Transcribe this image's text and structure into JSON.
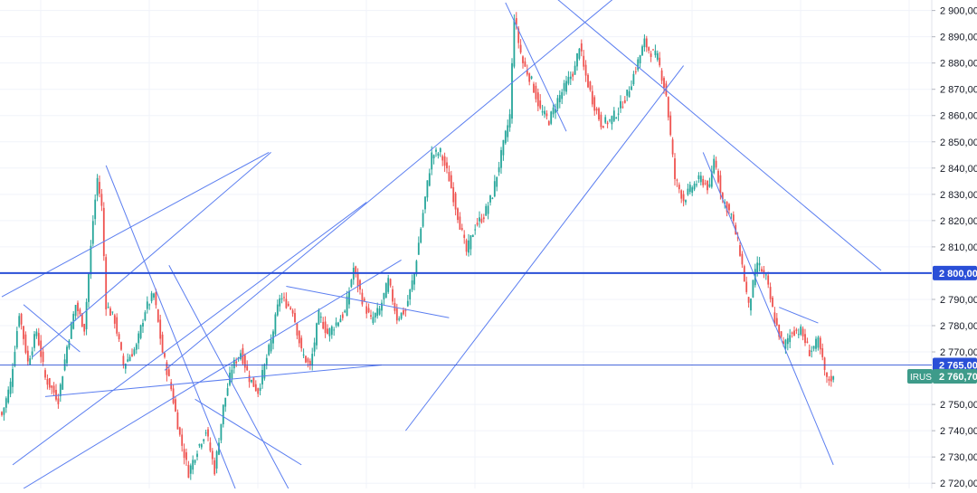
{
  "chart_data": {
    "type": "candlestick",
    "ylim": [
      2718,
      2904
    ],
    "y_ticks": [
      {
        "value": 2900,
        "label": "2 900,00"
      },
      {
        "value": 2890,
        "label": "2 890,00"
      },
      {
        "value": 2880,
        "label": "2 880,00"
      },
      {
        "value": 2870,
        "label": "2 870,00"
      },
      {
        "value": 2860,
        "label": "2 860,00"
      },
      {
        "value": 2850,
        "label": "2 850,00"
      },
      {
        "value": 2840,
        "label": "2 840,00"
      },
      {
        "value": 2830,
        "label": "2 830,00"
      },
      {
        "value": 2820,
        "label": "2 820,00"
      },
      {
        "value": 2810,
        "label": "2 810,00"
      },
      {
        "value": 2790,
        "label": "2 790,00"
      },
      {
        "value": 2780,
        "label": "2 780,00"
      },
      {
        "value": 2770,
        "label": "2 770,00"
      },
      {
        "value": 2750,
        "label": "2 750,00"
      },
      {
        "value": 2740,
        "label": "2 740,00"
      },
      {
        "value": 2730,
        "label": "2 730,00"
      },
      {
        "value": 2720,
        "label": "2 720,00"
      }
    ],
    "grid": true,
    "x_tick_count": 9,
    "levels": [
      {
        "value": 2800,
        "label": "2 800,00",
        "thick": true
      },
      {
        "value": 2765,
        "label": "2 765,00",
        "thick": false
      }
    ],
    "last_price": {
      "symbol": "IRUS",
      "value": 2760.7,
      "label": "2 760,70"
    },
    "colors": {
      "up": "#26a69a",
      "down": "#ef5350",
      "trendline": "#5b7ef0",
      "level": "#2a4fd7",
      "grid": "#f0f3fa",
      "axis_text": "#131722",
      "price_tag": "#3e9b8a"
    },
    "anchors": [
      [
        0,
        2746
      ],
      [
        4,
        2758
      ],
      [
        8,
        2785
      ],
      [
        12,
        2766
      ],
      [
        16,
        2778
      ],
      [
        20,
        2760
      ],
      [
        26,
        2752
      ],
      [
        30,
        2772
      ],
      [
        34,
        2788
      ],
      [
        38,
        2779
      ],
      [
        42,
        2820
      ],
      [
        44,
        2836
      ],
      [
        46,
        2825
      ],
      [
        48,
        2788
      ],
      [
        52,
        2782
      ],
      [
        56,
        2765
      ],
      [
        62,
        2772
      ],
      [
        66,
        2786
      ],
      [
        70,
        2792
      ],
      [
        74,
        2770
      ],
      [
        78,
        2756
      ],
      [
        82,
        2738
      ],
      [
        86,
        2724
      ],
      [
        90,
        2733
      ],
      [
        94,
        2740
      ],
      [
        98,
        2725
      ],
      [
        102,
        2749
      ],
      [
        106,
        2764
      ],
      [
        110,
        2770
      ],
      [
        114,
        2760
      ],
      [
        118,
        2755
      ],
      [
        124,
        2774
      ],
      [
        128,
        2791
      ],
      [
        134,
        2786
      ],
      [
        138,
        2770
      ],
      [
        142,
        2764
      ],
      [
        146,
        2784
      ],
      [
        150,
        2777
      ],
      [
        154,
        2781
      ],
      [
        158,
        2785
      ],
      [
        162,
        2802
      ],
      [
        166,
        2790
      ],
      [
        170,
        2782
      ],
      [
        174,
        2786
      ],
      [
        178,
        2797
      ],
      [
        182,
        2783
      ],
      [
        186,
        2786
      ],
      [
        190,
        2800
      ],
      [
        194,
        2823
      ],
      [
        198,
        2845
      ],
      [
        202,
        2846
      ],
      [
        206,
        2836
      ],
      [
        210,
        2822
      ],
      [
        214,
        2808
      ],
      [
        218,
        2818
      ],
      [
        222,
        2822
      ],
      [
        226,
        2830
      ],
      [
        230,
        2845
      ],
      [
        234,
        2860
      ],
      [
        236,
        2898
      ],
      [
        238,
        2888
      ],
      [
        240,
        2880
      ],
      [
        244,
        2873
      ],
      [
        248,
        2862
      ],
      [
        252,
        2858
      ],
      [
        256,
        2866
      ],
      [
        260,
        2872
      ],
      [
        264,
        2878
      ],
      [
        266,
        2887
      ],
      [
        268,
        2878
      ],
      [
        272,
        2866
      ],
      [
        276,
        2857
      ],
      [
        280,
        2858
      ],
      [
        284,
        2862
      ],
      [
        288,
        2868
      ],
      [
        292,
        2878
      ],
      [
        296,
        2888
      ],
      [
        298,
        2885
      ],
      [
        302,
        2882
      ],
      [
        306,
        2868
      ],
      [
        310,
        2836
      ],
      [
        314,
        2828
      ],
      [
        318,
        2833
      ],
      [
        322,
        2836
      ],
      [
        326,
        2832
      ],
      [
        328,
        2844
      ],
      [
        332,
        2828
      ],
      [
        336,
        2822
      ],
      [
        340,
        2808
      ],
      [
        344,
        2787
      ],
      [
        348,
        2804
      ],
      [
        352,
        2798
      ],
      [
        356,
        2782
      ],
      [
        360,
        2772
      ],
      [
        364,
        2778
      ],
      [
        368,
        2778
      ],
      [
        372,
        2770
      ],
      [
        376,
        2774
      ],
      [
        380,
        2759
      ],
      [
        383,
        2760.7
      ]
    ],
    "trendlines": [
      [
        [
          0,
          2791
        ],
        [
          123,
          2846
        ]
      ],
      [
        [
          14,
          2768
        ],
        [
          124,
          2846
        ]
      ],
      [
        [
          5,
          2727
        ],
        [
          168,
          2827
        ]
      ],
      [
        [
          10,
          2718
        ],
        [
          184,
          2805
        ]
      ],
      [
        [
          10,
          2788
        ],
        [
          36,
          2770
        ]
      ],
      [
        [
          48,
          2841
        ],
        [
          108,
          2717
        ]
      ],
      [
        [
          77,
          2803
        ],
        [
          132,
          2718
        ]
      ],
      [
        [
          75,
          2763
        ],
        [
          300,
          2917
        ]
      ],
      [
        [
          186,
          2740
        ],
        [
          314,
          2879
        ]
      ],
      [
        [
          20,
          2753
        ],
        [
          175,
          2765
        ]
      ],
      [
        [
          131,
          2795
        ],
        [
          206,
          2783
        ]
      ],
      [
        [
          89,
          2752
        ],
        [
          138,
          2727
        ]
      ],
      [
        [
          232,
          2903
        ],
        [
          260,
          2854
        ]
      ],
      [
        [
          252,
          2907
        ],
        [
          405,
          2801
        ]
      ],
      [
        [
          323,
          2846
        ],
        [
          383,
          2727
        ]
      ],
      [
        [
          358,
          2787
        ],
        [
          376,
          2781
        ]
      ]
    ]
  }
}
